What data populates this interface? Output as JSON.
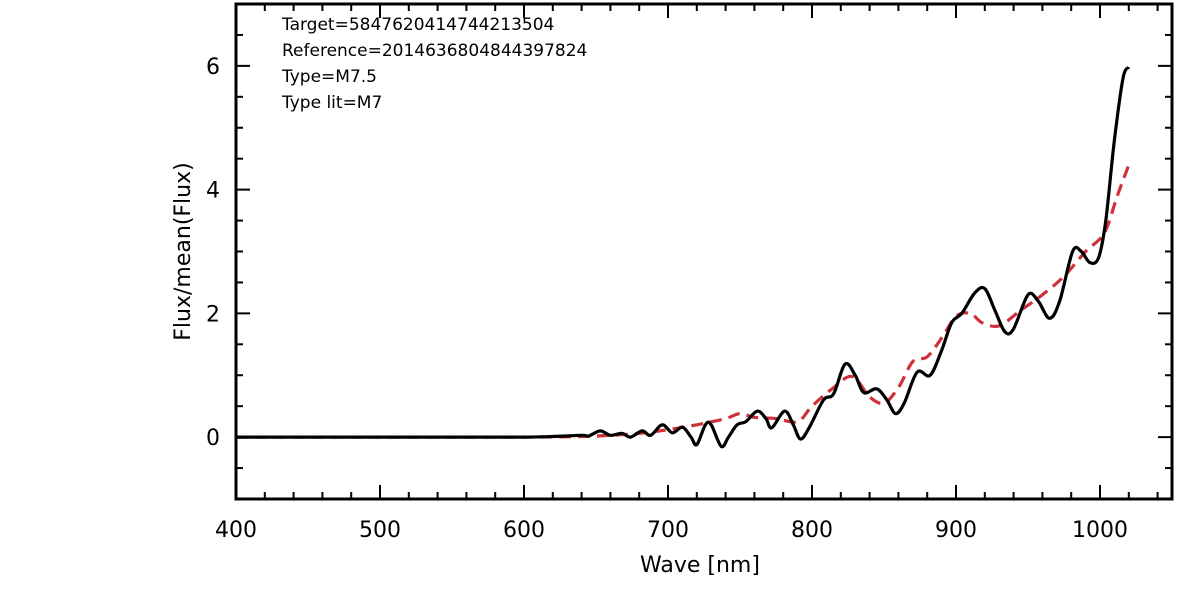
{
  "chart_data": {
    "type": "line",
    "xlabel": "Wave [nm]",
    "ylabel": "Flux/mean(Flux)",
    "xlim": [
      400,
      1050
    ],
    "ylim": [
      -1,
      7
    ],
    "x_ticks": [
      400,
      500,
      600,
      700,
      800,
      900,
      1000
    ],
    "y_ticks": [
      0,
      2,
      4,
      6
    ],
    "grid": false,
    "annotations": [
      "Target=5847620414744213504",
      "Reference=2014636804844397824",
      "Type=M7.5",
      "Type lit=M7"
    ],
    "series": [
      {
        "style": "solid",
        "color": "#000000",
        "points": [
          [
            400,
            0.0
          ],
          [
            450,
            0.0
          ],
          [
            500,
            0.0
          ],
          [
            550,
            0.0
          ],
          [
            600,
            0.0
          ],
          [
            620,
            0.01
          ],
          [
            640,
            0.03
          ],
          [
            645,
            0.02
          ],
          [
            653,
            0.1
          ],
          [
            660,
            0.03
          ],
          [
            668,
            0.06
          ],
          [
            674,
            0.0
          ],
          [
            682,
            0.1
          ],
          [
            688,
            0.03
          ],
          [
            696,
            0.2
          ],
          [
            703,
            0.07
          ],
          [
            710,
            0.16
          ],
          [
            716,
            0.0
          ],
          [
            720,
            -0.12
          ],
          [
            726,
            0.2
          ],
          [
            730,
            0.2
          ],
          [
            737,
            -0.15
          ],
          [
            742,
            0.0
          ],
          [
            748,
            0.2
          ],
          [
            754,
            0.25
          ],
          [
            762,
            0.42
          ],
          [
            768,
            0.3
          ],
          [
            772,
            0.15
          ],
          [
            781,
            0.42
          ],
          [
            787,
            0.2
          ],
          [
            792,
            -0.03
          ],
          [
            798,
            0.15
          ],
          [
            808,
            0.6
          ],
          [
            815,
            0.7
          ],
          [
            823,
            1.18
          ],
          [
            830,
            1.0
          ],
          [
            836,
            0.72
          ],
          [
            845,
            0.78
          ],
          [
            852,
            0.6
          ],
          [
            858,
            0.38
          ],
          [
            864,
            0.55
          ],
          [
            873,
            1.05
          ],
          [
            882,
            1.0
          ],
          [
            890,
            1.4
          ],
          [
            897,
            1.85
          ],
          [
            904,
            2.0
          ],
          [
            913,
            2.33
          ],
          [
            920,
            2.4
          ],
          [
            927,
            2.05
          ],
          [
            934,
            1.7
          ],
          [
            940,
            1.75
          ],
          [
            950,
            2.3
          ],
          [
            957,
            2.2
          ],
          [
            965,
            1.92
          ],
          [
            972,
            2.2
          ],
          [
            981,
            3.0
          ],
          [
            987,
            3.0
          ],
          [
            993,
            2.82
          ],
          [
            999,
            2.9
          ],
          [
            1004,
            3.5
          ],
          [
            1010,
            4.8
          ],
          [
            1016,
            5.8
          ],
          [
            1020,
            5.98
          ]
        ]
      },
      {
        "style": "dashed",
        "color": "#d0303a",
        "points": [
          [
            400,
            0.0
          ],
          [
            500,
            0.0
          ],
          [
            600,
            0.0
          ],
          [
            640,
            0.01
          ],
          [
            660,
            0.03
          ],
          [
            680,
            0.06
          ],
          [
            700,
            0.12
          ],
          [
            720,
            0.2
          ],
          [
            740,
            0.3
          ],
          [
            750,
            0.38
          ],
          [
            760,
            0.32
          ],
          [
            775,
            0.3
          ],
          [
            790,
            0.25
          ],
          [
            800,
            0.5
          ],
          [
            815,
            0.8
          ],
          [
            828,
            0.98
          ],
          [
            840,
            0.65
          ],
          [
            850,
            0.55
          ],
          [
            860,
            0.8
          ],
          [
            870,
            1.22
          ],
          [
            880,
            1.3
          ],
          [
            890,
            1.6
          ],
          [
            900,
            1.95
          ],
          [
            910,
            2.0
          ],
          [
            918,
            1.85
          ],
          [
            930,
            1.8
          ],
          [
            945,
            2.05
          ],
          [
            960,
            2.3
          ],
          [
            975,
            2.6
          ],
          [
            990,
            3.0
          ],
          [
            1003,
            3.3
          ],
          [
            1012,
            3.9
          ],
          [
            1020,
            4.4
          ]
        ]
      }
    ]
  }
}
